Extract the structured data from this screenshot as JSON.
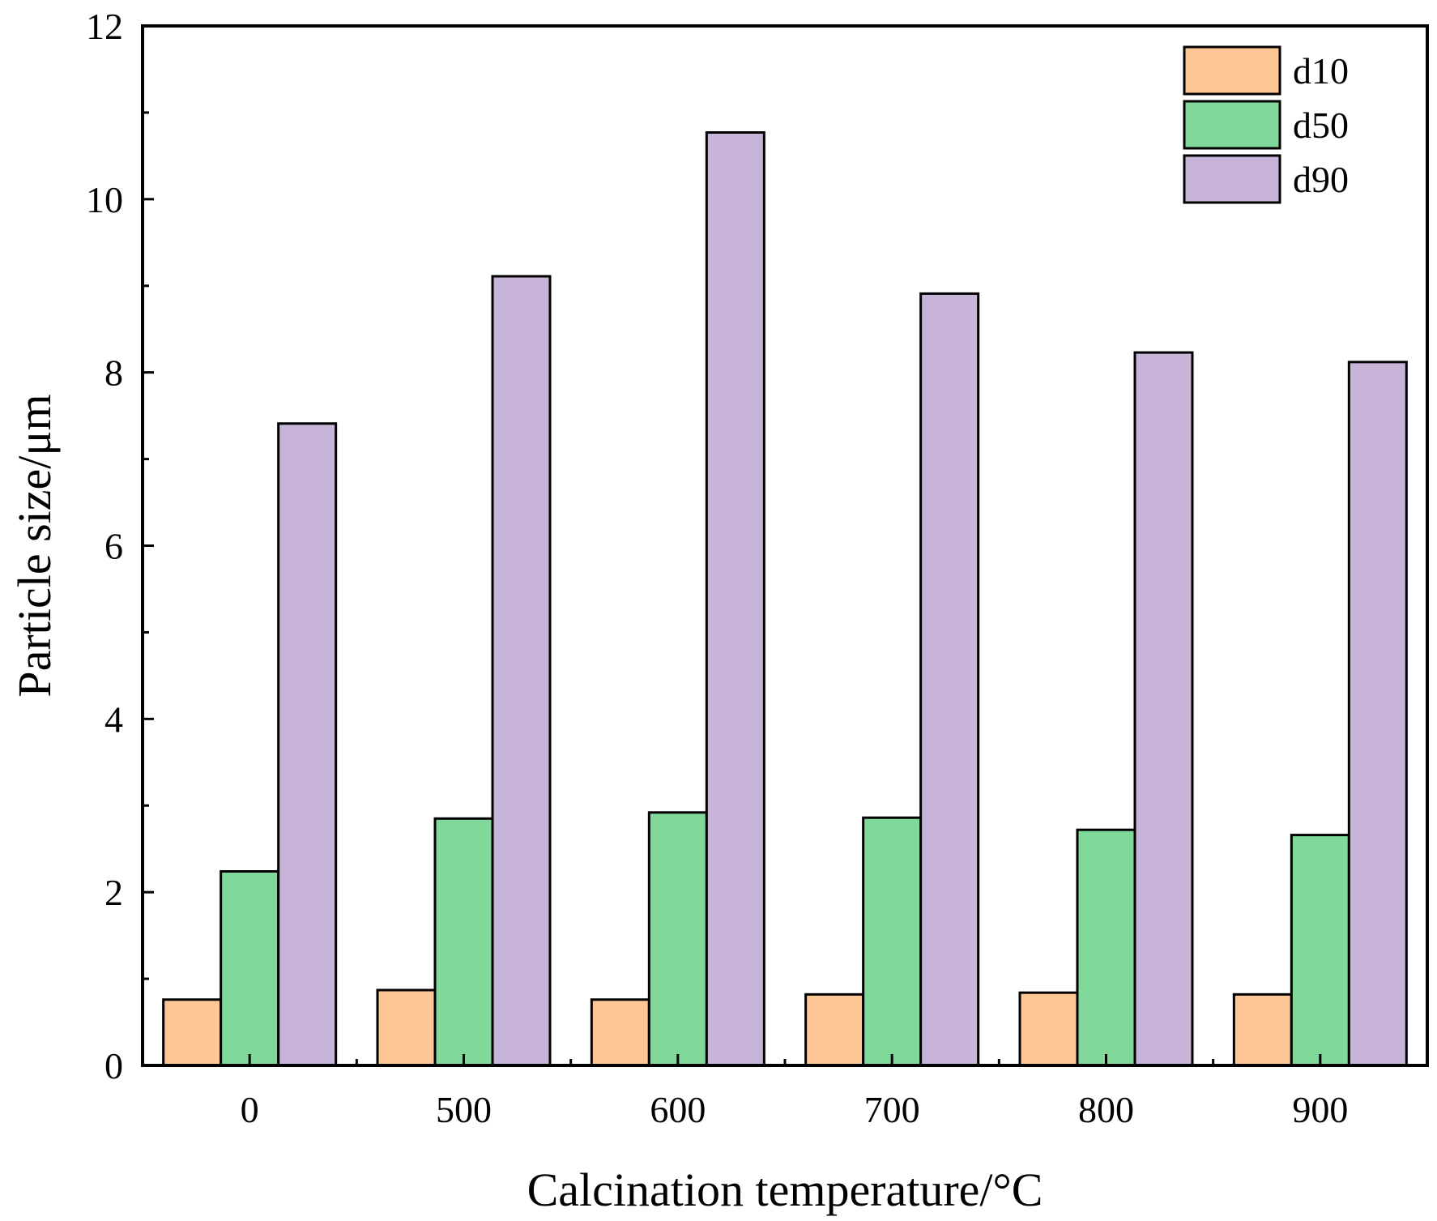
{
  "chart_data": {
    "type": "bar",
    "title": "",
    "xlabel": "Calcination temperature/°C",
    "ylabel": "Particle size/μm",
    "categories": [
      "0",
      "500",
      "600",
      "700",
      "800",
      "900"
    ],
    "series": [
      {
        "name": "d10",
        "color": "#FDC795",
        "values": [
          0.76,
          0.87,
          0.76,
          0.82,
          0.84,
          0.82
        ]
      },
      {
        "name": "d50",
        "color": "#80D89A",
        "values": [
          2.24,
          2.85,
          2.92,
          2.86,
          2.72,
          2.66
        ]
      },
      {
        "name": "d90",
        "color": "#C8B4D8",
        "values": [
          7.41,
          9.11,
          10.77,
          8.91,
          8.23,
          8.12
        ]
      }
    ],
    "ylim": [
      0,
      12
    ],
    "yticks": [
      "0",
      "2",
      "4",
      "6",
      "8",
      "10",
      "12"
    ],
    "grid": false,
    "legend_position": "top-right"
  }
}
